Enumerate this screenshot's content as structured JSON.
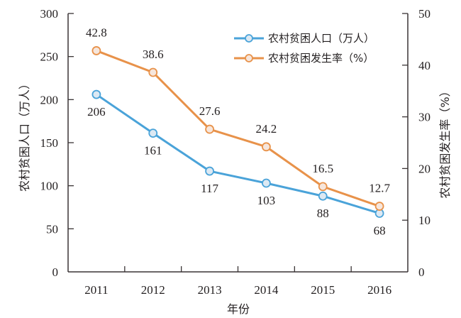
{
  "chart_data": {
    "type": "line",
    "title": "",
    "categories": [
      "2011",
      "2012",
      "2013",
      "2014",
      "2015",
      "2016"
    ],
    "xlabel": "年份",
    "ylabel_left": "农村贫困人口（万人）",
    "ylabel_right": "农村贫困发生率（%）",
    "ylim_left": [
      0,
      300
    ],
    "yticks_left": [
      "0",
      "50",
      "100",
      "150",
      "200",
      "250",
      "300"
    ],
    "ylim_right": [
      0,
      50
    ],
    "yticks_right": [
      "0",
      "10",
      "20",
      "30",
      "40",
      "50"
    ],
    "grid": false,
    "legend_position": "top-right",
    "series": [
      {
        "name": "农村贫困人口（万人）",
        "axis": "left",
        "color": "#4aa3d9",
        "marker_fill": "#dde9f3",
        "values": [
          206,
          161,
          117,
          103,
          88,
          68
        ],
        "labels": [
          "206",
          "161",
          "117",
          "103",
          "88",
          "68"
        ],
        "label_position": "below"
      },
      {
        "name": "农村贫困发生率（%）",
        "axis": "right",
        "color": "#e8924a",
        "marker_fill": "#f6e6dc",
        "values": [
          42.8,
          38.6,
          27.6,
          24.2,
          16.5,
          12.7
        ],
        "labels": [
          "42.8",
          "38.6",
          "27.6",
          "24.2",
          "16.5",
          "12.7"
        ],
        "label_position": "above"
      }
    ]
  }
}
